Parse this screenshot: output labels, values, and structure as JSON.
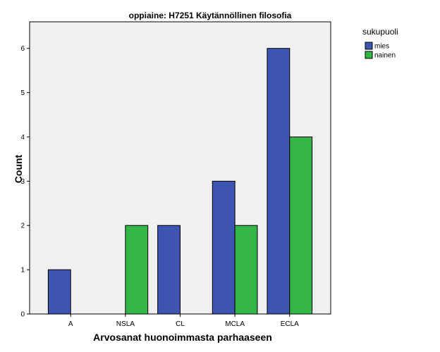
{
  "chart_data": {
    "type": "bar",
    "title": "oppiaine: H7251 Käytännöllinen filosofia",
    "xlabel": "Arvosanat huonoimmasta parhaaseen",
    "ylabel": "Count",
    "categories": [
      "A",
      "NSLA",
      "CL",
      "MCLA",
      "ECLA"
    ],
    "series": [
      {
        "name": "mies",
        "values": [
          1,
          0,
          2,
          3,
          6
        ],
        "color": "#3d55b0"
      },
      {
        "name": "nainen",
        "values": [
          0,
          2,
          0,
          2,
          4
        ],
        "color": "#33b548"
      }
    ],
    "ylim": [
      0,
      6.6
    ],
    "yticks": [
      0,
      1,
      2,
      3,
      4,
      5,
      6
    ],
    "grid": false,
    "plot_background": "#f0f0f0",
    "legend": {
      "title": "sukupuoli",
      "placement": "right-top"
    }
  }
}
